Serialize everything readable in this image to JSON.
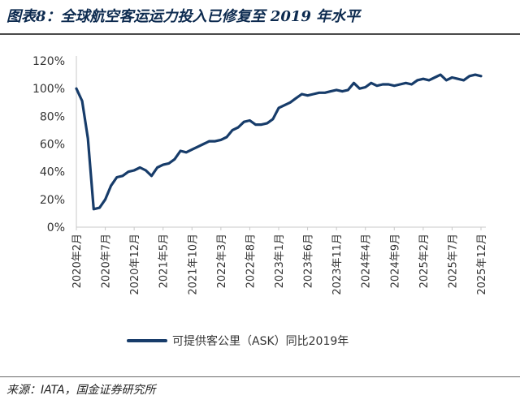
{
  "figure": {
    "title": "图表8：全球航空客运运力投入已修复至 2019 年水平",
    "source": "来源：IATA，国金证券研究所"
  },
  "colors": {
    "series": "#173c6a",
    "title": "#0c2a4f",
    "axis": "#c8c8c8"
  },
  "chart_data": {
    "type": "line",
    "title": "",
    "xlabel": "",
    "ylabel": "",
    "ylim": [
      0,
      1.2
    ],
    "y_tick_values": [
      0,
      0.2,
      0.4,
      0.6,
      0.8,
      1.0,
      1.2
    ],
    "y_tick_labels": [
      "0%",
      "20%",
      "40%",
      "60%",
      "80%",
      "100%",
      "120%"
    ],
    "x_tick_labels": [
      "2020年2月",
      "2020年7月",
      "2020年12月",
      "2021年5月",
      "2021年10月",
      "2022年3月",
      "2022年8月",
      "2023年1月",
      "2023年6月",
      "2023年11月",
      "2024年4月",
      "2024年9月",
      "2025年2月",
      "2025年7月",
      "2025年12月"
    ],
    "x_start": "2020-02",
    "x_end": "2025-12",
    "grid": false,
    "legend_position": "bottom",
    "series": [
      {
        "name": "可提供客公里（ASK）同比2019年",
        "values": [
          1.0,
          0.91,
          0.64,
          0.13,
          0.14,
          0.2,
          0.3,
          0.36,
          0.37,
          0.4,
          0.41,
          0.43,
          0.41,
          0.37,
          0.43,
          0.45,
          0.46,
          0.49,
          0.55,
          0.54,
          0.56,
          0.58,
          0.6,
          0.62,
          0.62,
          0.63,
          0.65,
          0.7,
          0.72,
          0.76,
          0.77,
          0.74,
          0.74,
          0.75,
          0.78,
          0.86,
          0.88,
          0.9,
          0.93,
          0.96,
          0.95,
          0.96,
          0.97,
          0.97,
          0.98,
          0.99,
          0.98,
          0.99,
          1.04,
          1.0,
          1.01,
          1.04,
          1.02,
          1.03,
          1.03,
          1.02,
          1.03,
          1.04,
          1.03,
          1.06,
          1.07,
          1.06,
          1.08,
          1.1,
          1.06,
          1.08,
          1.07,
          1.06,
          1.09,
          1.1,
          1.09
        ]
      }
    ]
  }
}
